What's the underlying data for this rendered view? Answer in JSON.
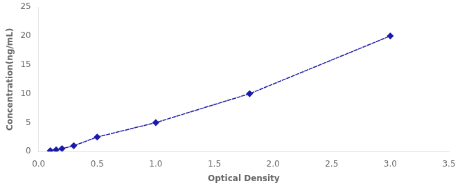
{
  "chart_data": {
    "type": "line",
    "x": [
      0.1,
      0.15,
      0.2,
      0.3,
      0.5,
      1.0,
      1.8,
      3.0
    ],
    "values": [
      0.15,
      0.3,
      0.5,
      1.0,
      2.5,
      5.0,
      10.0,
      20.0
    ],
    "color": "#1a1aaa",
    "marker": "diamond",
    "line_style": "dashed",
    "xlabel": "Optical Density",
    "ylabel": "Concentration(ng/mL)",
    "xlim": [
      0,
      3.5
    ],
    "ylim": [
      0,
      25
    ],
    "xticks": [
      {
        "value": 0,
        "label": "0.0"
      },
      0.5,
      {
        "value": 1.0,
        "label": "1.0"
      },
      1.5,
      {
        "value": 2.0,
        "label": "2.0"
      },
      2.5,
      {
        "value": 3.0,
        "label": "3.0"
      },
      3.5
    ],
    "yticks": [
      0,
      5,
      10,
      15,
      20,
      25
    ],
    "grid": false
  }
}
